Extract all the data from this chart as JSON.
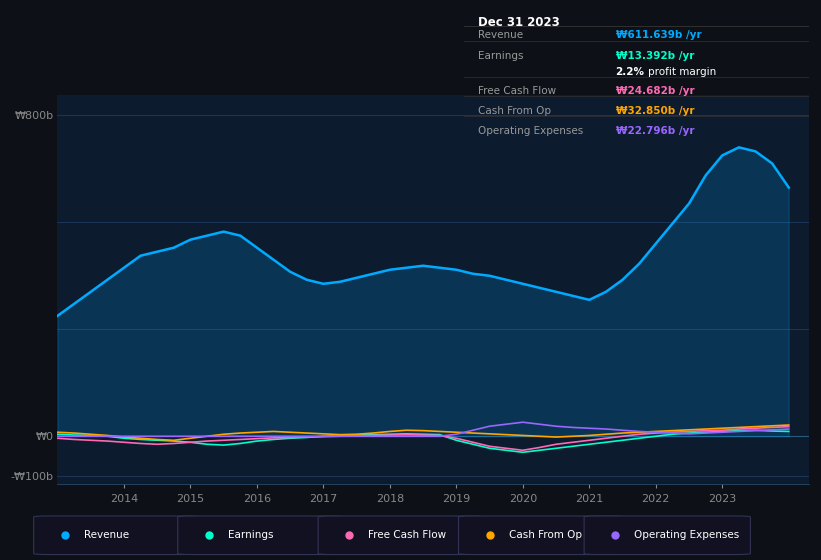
{
  "bg_color": "#0d1117",
  "chart_bg": "#0d1b2e",
  "legend_items": [
    {
      "label": "Revenue",
      "color": "#00aaff"
    },
    {
      "label": "Earnings",
      "color": "#00ffcc"
    },
    {
      "label": "Free Cash Flow",
      "color": "#ff69b4"
    },
    {
      "label": "Cash From Op",
      "color": "#ffa500"
    },
    {
      "label": "Operating Expenses",
      "color": "#9966ff"
    }
  ],
  "info_box": {
    "title": "Dec 31 2023",
    "rows": [
      {
        "label": "Revenue",
        "value": "₩611.639b /yr",
        "value_color": "#00aaff"
      },
      {
        "label": "Earnings",
        "value": "₩13.392b /yr",
        "value_color": "#00ffcc"
      },
      {
        "label": "",
        "value": "2.2% profit margin",
        "value_color": "#ffffff"
      },
      {
        "label": "Free Cash Flow",
        "value": "₩24.682b /yr",
        "value_color": "#ff69b4"
      },
      {
        "label": "Cash From Op",
        "value": "₩32.850b /yr",
        "value_color": "#ffa500"
      },
      {
        "label": "Operating Expenses",
        "value": "₩22.796b /yr",
        "value_color": "#9966ff"
      }
    ]
  },
  "years": [
    2013.0,
    2013.25,
    2013.5,
    2013.75,
    2014.0,
    2014.25,
    2014.5,
    2014.75,
    2015.0,
    2015.25,
    2015.5,
    2015.75,
    2016.0,
    2016.25,
    2016.5,
    2016.75,
    2017.0,
    2017.25,
    2017.5,
    2017.75,
    2018.0,
    2018.25,
    2018.5,
    2018.75,
    2019.0,
    2019.25,
    2019.5,
    2019.75,
    2020.0,
    2020.25,
    2020.5,
    2020.75,
    2021.0,
    2021.25,
    2021.5,
    2021.75,
    2022.0,
    2022.25,
    2022.5,
    2022.75,
    2023.0,
    2023.25,
    2023.5,
    2023.75,
    2024.0
  ],
  "revenue": [
    300,
    330,
    360,
    390,
    420,
    450,
    460,
    470,
    490,
    500,
    510,
    500,
    470,
    440,
    410,
    390,
    380,
    385,
    395,
    405,
    415,
    420,
    425,
    420,
    415,
    405,
    400,
    390,
    380,
    370,
    360,
    350,
    340,
    360,
    390,
    430,
    480,
    530,
    580,
    650,
    700,
    720,
    710,
    680,
    620
  ],
  "earnings": [
    5,
    3,
    2,
    0,
    -5,
    -8,
    -10,
    -12,
    -15,
    -20,
    -22,
    -18,
    -12,
    -8,
    -5,
    -3,
    0,
    2,
    3,
    4,
    5,
    6,
    5,
    4,
    -10,
    -20,
    -30,
    -35,
    -40,
    -35,
    -30,
    -25,
    -20,
    -15,
    -10,
    -5,
    0,
    5,
    8,
    10,
    12,
    14,
    15,
    13,
    12
  ],
  "free_cash_flow": [
    -5,
    -8,
    -10,
    -12,
    -15,
    -18,
    -20,
    -18,
    -15,
    -12,
    -10,
    -8,
    -6,
    -4,
    -3,
    -2,
    -1,
    0,
    1,
    2,
    3,
    4,
    3,
    2,
    -5,
    -15,
    -25,
    -30,
    -35,
    -28,
    -20,
    -15,
    -10,
    -5,
    0,
    5,
    8,
    10,
    12,
    14,
    15,
    18,
    20,
    22,
    24
  ],
  "cash_from_op": [
    10,
    8,
    5,
    2,
    -2,
    -5,
    -8,
    -10,
    -5,
    0,
    5,
    8,
    10,
    12,
    10,
    8,
    6,
    4,
    5,
    8,
    12,
    15,
    14,
    12,
    10,
    8,
    6,
    4,
    2,
    0,
    -2,
    0,
    2,
    5,
    8,
    10,
    12,
    14,
    16,
    18,
    20,
    22,
    24,
    26,
    28
  ],
  "operating_expenses": [
    0,
    0,
    0,
    0,
    0,
    0,
    0,
    0,
    0,
    0,
    0,
    0,
    0,
    0,
    0,
    0,
    0,
    0,
    0,
    0,
    0,
    0,
    0,
    0,
    5,
    15,
    25,
    30,
    35,
    30,
    25,
    22,
    20,
    18,
    15,
    12,
    10,
    8,
    6,
    8,
    10,
    12,
    14,
    16,
    18
  ],
  "ylim": [
    -120,
    850
  ],
  "xlim": [
    2013.0,
    2024.3
  ],
  "xticks": [
    2014,
    2015,
    2016,
    2017,
    2018,
    2019,
    2020,
    2021,
    2022,
    2023
  ],
  "ytick_positions": [
    -100,
    0,
    800
  ],
  "ytick_labels": [
    "-₩100b",
    "₩0",
    "₩800b"
  ],
  "grid_lines_y": [
    -100,
    0,
    267,
    533,
    800
  ],
  "zero_line_y": 0
}
